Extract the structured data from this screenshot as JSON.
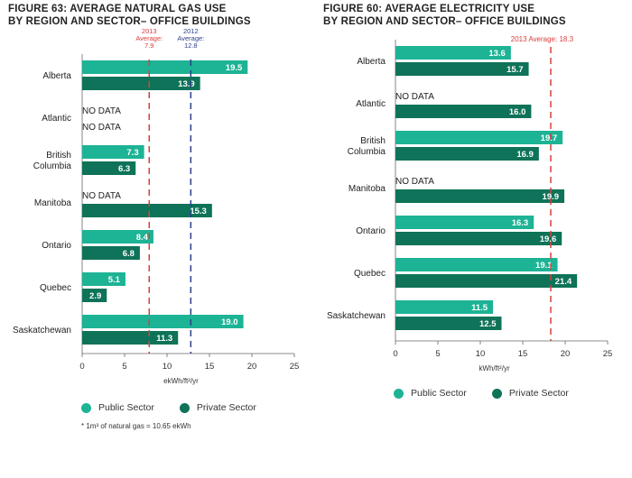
{
  "colors": {
    "public": "#1db395",
    "private": "#0e7358",
    "avg2013": "#d9403c",
    "avg2012": "#2f3f8c",
    "axis": "#666666"
  },
  "chart_data": [
    {
      "type": "bar",
      "orientation": "horizontal",
      "title_line1": "FIGURE 63: AVERAGE NATURAL GAS USE",
      "title_line2": "BY REGION AND SECTOR– OFFICE BUILDINGS",
      "categories": [
        "Alberta",
        "Atlantic",
        "British\nColumbia",
        "Manitoba",
        "Ontario",
        "Quebec",
        "Saskatchewan"
      ],
      "series": [
        {
          "name": "Public Sector",
          "values": [
            19.5,
            null,
            7.3,
            null,
            8.4,
            5.1,
            19.0
          ]
        },
        {
          "name": "Private Sector",
          "values": [
            13.9,
            null,
            6.3,
            15.3,
            6.8,
            2.9,
            11.3
          ]
        }
      ],
      "no_data_label": "NO DATA",
      "xlim": [
        0,
        25
      ],
      "xticks": [
        0,
        5,
        10,
        15,
        20,
        25
      ],
      "xlabel": "ekWh/ft²/yr",
      "reference_lines": [
        {
          "value": 7.9,
          "label_lines": [
            "2013",
            "Average:",
            "7.9"
          ],
          "color_key": "avg2013"
        },
        {
          "value": 12.8,
          "label_lines": [
            "2012",
            "Average:",
            "12.8"
          ],
          "color_key": "avg2012"
        }
      ]
    },
    {
      "type": "bar",
      "orientation": "horizontal",
      "title_line1": "FIGURE 60: AVERAGE ELECTRICITY USE",
      "title_line2": "BY REGION AND SECTOR– OFFICE BUILDINGS",
      "categories": [
        "Alberta",
        "Atlantic",
        "British\nColumbia",
        "Manitoba",
        "Ontario",
        "Quebec",
        "Saskatchewan"
      ],
      "series": [
        {
          "name": "Public Sector",
          "values": [
            13.6,
            null,
            19.7,
            null,
            16.3,
            19.1,
            11.5
          ]
        },
        {
          "name": "Private Sector",
          "values": [
            15.7,
            16.0,
            16.9,
            19.9,
            19.6,
            21.4,
            12.5
          ]
        }
      ],
      "no_data_label": "NO DATA",
      "xlim": [
        0,
        25
      ],
      "xticks": [
        0,
        5,
        10,
        15,
        20,
        25
      ],
      "xlabel": "kWh/ft²/yr",
      "reference_lines": [
        {
          "value": 18.3,
          "label_lines": [
            "2013 Average: 18.3"
          ],
          "color_key": "avg2013"
        }
      ]
    }
  ],
  "legend": {
    "public": "Public Sector",
    "private": "Private Sector"
  },
  "footnote": "* 1m³ of natural gas = 10.65 ekWh"
}
